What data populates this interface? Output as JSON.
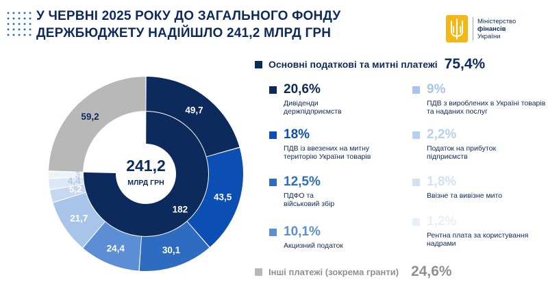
{
  "header": {
    "title_line1": "У ЧЕРВНІ 2025 РОКУ ДО ЗАГАЛЬНОГО ФОНДУ",
    "title_line2": "ДЕРЖБЮДЖЕТУ НАДІЙШЛО 241,2 МЛРД ГРН"
  },
  "logo": {
    "line1": "Міністерство",
    "line2": "фінансів",
    "line3": "України",
    "icon": "trident-emblem",
    "color": "#f3b718"
  },
  "chart_data": {
    "type": "pie",
    "variant": "nested-donut",
    "total": {
      "value": "241,2",
      "unit": "МЛРД ГРН"
    },
    "inner_ring": [
      {
        "value": 182,
        "label": "182",
        "color": "#0d2a5c"
      },
      {
        "value": 59.2,
        "label": "",
        "color": "#ffffff"
      }
    ],
    "outer_ring": [
      {
        "value": 49.7,
        "label": "49,7",
        "color": "#0d2a5c",
        "text_color": "#ffffff"
      },
      {
        "value": 43.5,
        "label": "43,5",
        "color": "#0b4fb4",
        "text_color": "#ffffff"
      },
      {
        "value": 30.1,
        "label": "30,1",
        "color": "#2d6cc0",
        "text_color": "#ffffff"
      },
      {
        "value": 24.4,
        "label": "24,4",
        "color": "#5b8ed4",
        "text_color": "#ffffff"
      },
      {
        "value": 21.7,
        "label": "21,7",
        "color": "#a8c4e8",
        "text_color": "#ffffff"
      },
      {
        "value": 5.2,
        "label": "5,2",
        "color": "#c5d8ef",
        "text_color": "#ffffff"
      },
      {
        "value": 4.4,
        "label": "4,4",
        "color": "#dde8f6",
        "text_color": "#b8c8dc"
      },
      {
        "value": 3,
        "label": "3",
        "color": "#eef3fa",
        "text_color": "#c9d5e4"
      },
      {
        "value": 59.2,
        "label": "59,2",
        "color": "#b8b8b8",
        "text_color": "#0d2a5c"
      }
    ],
    "legend": {
      "main": {
        "label": "Основні податкові та митні платежі",
        "pct": "75,4%",
        "color": "#0d2a5c"
      },
      "items": [
        {
          "pct": "20,6%",
          "desc": "Дивіденди держпідприємств",
          "color": "#0d2a5c"
        },
        {
          "pct": "18%",
          "desc": "ПДВ із ввезених на митну територію України товарів",
          "color": "#0b4fb4"
        },
        {
          "pct": "12,5%",
          "desc": "ПДФО та військовий збір",
          "color": "#2d6cc0"
        },
        {
          "pct": "10,1%",
          "desc": "Акцизний податок",
          "color": "#5b8ed4"
        },
        {
          "pct": "9%",
          "desc": "ПДВ з вироблених в Україні товарів та наданих послуг",
          "color": "#a8c4e8"
        },
        {
          "pct": "2,2%",
          "desc": "Податок на прибуток підприємств",
          "color": "#b9cfec"
        },
        {
          "pct": "1,8%",
          "desc": "Ввізне та вивізне мито",
          "color": "#d3e1f3"
        },
        {
          "pct": "1,2%",
          "desc": "Рентна плата за користування надрами",
          "color": "#e8eff8"
        }
      ],
      "other": {
        "label": "Інші платежі (зокрема гранти)",
        "pct": "24,6%",
        "color": "#b8b8b8"
      }
    }
  }
}
